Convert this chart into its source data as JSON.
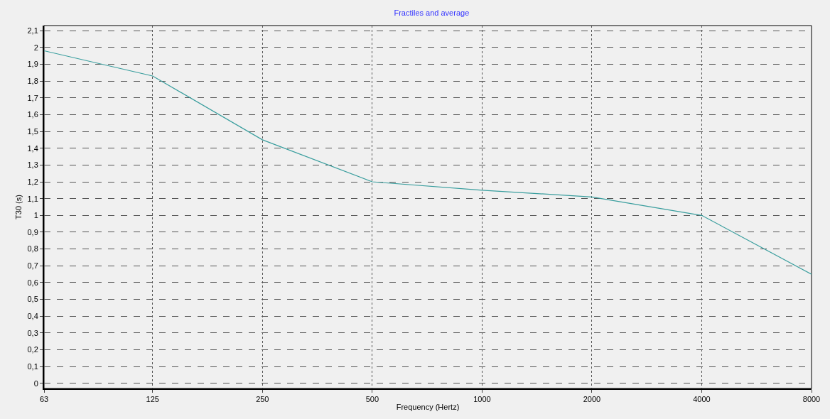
{
  "chart_data": {
    "type": "line",
    "title": "Fractiles and average",
    "xlabel": "Frequency (Hertz)",
    "ylabel": "T30 (s)",
    "x": [
      63,
      125,
      250,
      500,
      1000,
      2000,
      4000,
      8000
    ],
    "series": [
      {
        "color": "#3a9e9e",
        "values": [
          1.98,
          1.83,
          1.45,
          1.2,
          1.15,
          1.11,
          1.0,
          0.65
        ]
      }
    ],
    "log": "x",
    "xlim": [
      63,
      8000
    ],
    "xticks": [
      63,
      125,
      250,
      500,
      1000,
      2000,
      4000,
      8000
    ],
    "ylim": [
      -0.03,
      2.13
    ],
    "yticks": [
      0,
      {
        "value": 0.1,
        "label": "0,1"
      },
      {
        "value": 0.2,
        "label": "0,2"
      },
      {
        "value": 0.3,
        "label": "0,3"
      },
      {
        "value": 0.4,
        "label": "0,4"
      },
      {
        "value": 0.5,
        "label": "0,5"
      },
      {
        "value": 0.6,
        "label": "0,6"
      },
      {
        "value": 0.7,
        "label": "0,7"
      },
      {
        "value": 0.8,
        "label": "0,8"
      },
      {
        "value": 0.9,
        "label": "0,9"
      },
      1,
      {
        "value": 1.1,
        "label": "1,1"
      },
      {
        "value": 1.2,
        "label": "1,2"
      },
      {
        "value": 1.3,
        "label": "1,3"
      },
      {
        "value": 1.4,
        "label": "1,4"
      },
      {
        "value": 1.5,
        "label": "1,5"
      },
      {
        "value": 1.6,
        "label": "1,6"
      },
      {
        "value": 1.7,
        "label": "1,7"
      },
      {
        "value": 1.8,
        "label": "1,8"
      },
      {
        "value": 1.9,
        "label": "1,9"
      },
      2,
      {
        "value": 2.1,
        "label": "2,1"
      }
    ],
    "grid": true,
    "marker": "none",
    "line_style": "solid"
  }
}
